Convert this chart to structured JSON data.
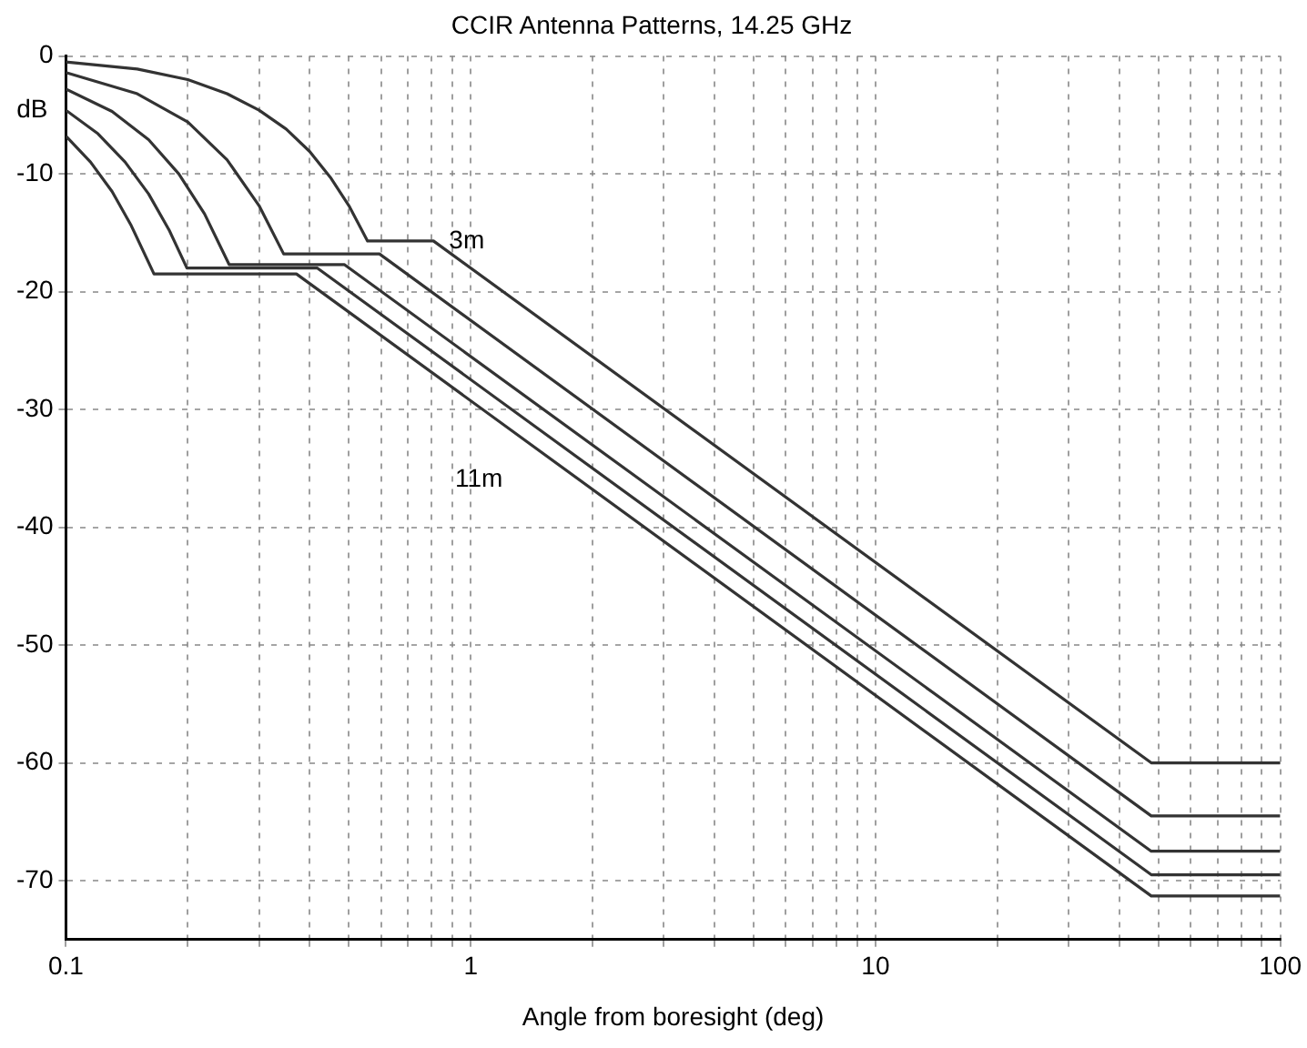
{
  "chart_data": {
    "type": "line",
    "title": "CCIR Antenna Patterns, 14.25 GHz",
    "xlabel": "Angle from boresight (deg)",
    "ylabel": "dB",
    "log": "x",
    "grid": true,
    "legend": false,
    "marker": "none",
    "line_style": "solid",
    "xlim": [
      0.1,
      100
    ],
    "ylim": [
      -75,
      0
    ],
    "xticks": [
      0.1,
      {
        "value": 0.2,
        "label": null
      },
      {
        "value": 0.3,
        "label": null
      },
      {
        "value": 0.4,
        "label": null
      },
      {
        "value": 0.5,
        "label": null
      },
      {
        "value": 0.6,
        "label": null
      },
      {
        "value": 0.7,
        "label": null
      },
      {
        "value": 0.8,
        "label": null
      },
      {
        "value": 0.9,
        "label": null
      },
      1,
      {
        "value": 2,
        "label": null
      },
      {
        "value": 3,
        "label": null
      },
      {
        "value": 4,
        "label": null
      },
      {
        "value": 5,
        "label": null
      },
      {
        "value": 6,
        "label": null
      },
      {
        "value": 7,
        "label": null
      },
      {
        "value": 8,
        "label": null
      },
      {
        "value": 9,
        "label": null
      },
      10,
      {
        "value": 20,
        "label": null
      },
      {
        "value": 30,
        "label": null
      },
      {
        "value": 40,
        "label": null
      },
      {
        "value": 50,
        "label": null
      },
      {
        "value": 60,
        "label": null
      },
      {
        "value": 70,
        "label": null
      },
      {
        "value": 80,
        "label": null
      },
      {
        "value": 90,
        "label": null
      },
      100
    ],
    "yticks": [
      -70,
      -60,
      -50,
      -40,
      -30,
      -20,
      -10,
      0
    ],
    "annotations": [
      "3m",
      "11m"
    ],
    "series": [
      {
        "color": "#333333",
        "x": [
          0.1,
          0.15,
          0.2,
          0.25,
          0.3,
          0.35,
          0.4,
          0.45,
          0.5,
          0.556,
          0.809,
          48,
          100
        ],
        "values": [
          -0.5,
          -1.1,
          -2.0,
          -3.2,
          -4.6,
          -6.2,
          -8.1,
          -10.3,
          -12.7,
          -15.7,
          -15.7,
          -60,
          -60
        ]
      },
      {
        "color": "#333333",
        "x": [
          0.1,
          0.15,
          0.2,
          0.25,
          0.3,
          0.345,
          0.595,
          48,
          100
        ],
        "values": [
          -1.4,
          -3.2,
          -5.6,
          -8.8,
          -12.7,
          -16.8,
          -16.8,
          -64.5,
          -64.5
        ]
      },
      {
        "color": "#333333",
        "x": [
          0.1,
          0.13,
          0.16,
          0.19,
          0.22,
          0.253,
          0.487,
          48,
          100
        ],
        "values": [
          -2.8,
          -4.7,
          -7.1,
          -10.0,
          -13.4,
          -17.7,
          -17.7,
          -67.5,
          -67.5
        ]
      },
      {
        "color": "#333333",
        "x": [
          0.1,
          0.12,
          0.14,
          0.16,
          0.18,
          0.199,
          0.418,
          48,
          100
        ],
        "values": [
          -4.6,
          -6.6,
          -9.0,
          -11.7,
          -14.8,
          -18.0,
          -18.0,
          -69.5,
          -69.5
        ]
      },
      {
        "color": "#333333",
        "x": [
          0.1,
          0.115,
          0.13,
          0.145,
          0.165,
          0.371,
          48,
          100
        ],
        "values": [
          -6.8,
          -9.0,
          -11.5,
          -14.4,
          -18.5,
          -18.5,
          -71.3,
          -71.3
        ]
      }
    ]
  }
}
